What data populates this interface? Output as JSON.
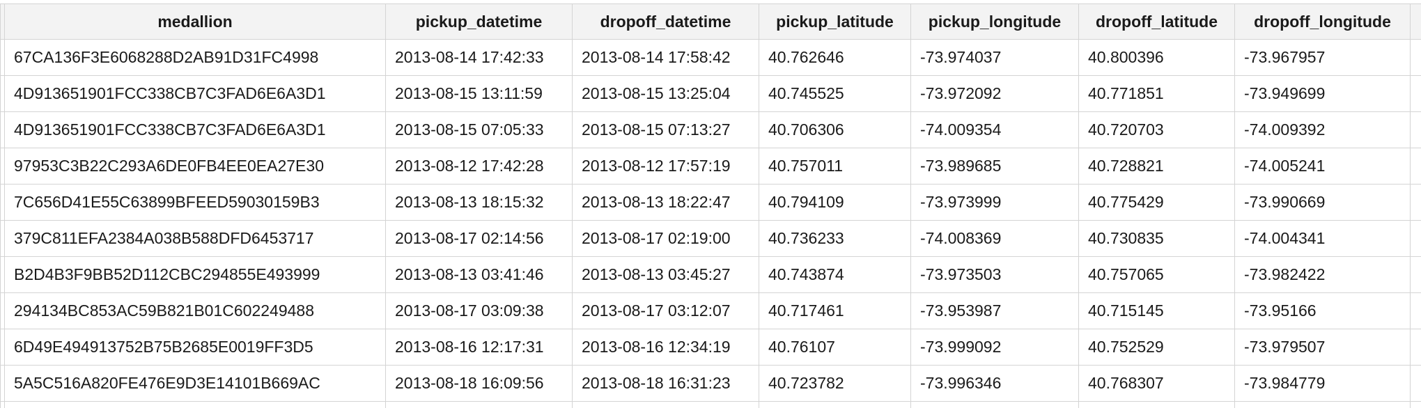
{
  "table": {
    "columns": [
      "medallion",
      "pickup_datetime",
      "dropoff_datetime",
      "pickup_latitude",
      "pickup_longitude",
      "dropoff_latitude",
      "dropoff_longitude"
    ],
    "rows": [
      [
        "67CA136F3E6068288D2AB91D31FC4998",
        "2013-08-14 17:42:33",
        "2013-08-14 17:58:42",
        "40.762646",
        "-73.974037",
        "40.800396",
        "-73.967957"
      ],
      [
        "4D913651901FCC338CB7C3FAD6E6A3D1",
        "2013-08-15 13:11:59",
        "2013-08-15 13:25:04",
        "40.745525",
        "-73.972092",
        "40.771851",
        "-73.949699"
      ],
      [
        "4D913651901FCC338CB7C3FAD6E6A3D1",
        "2013-08-15 07:05:33",
        "2013-08-15 07:13:27",
        "40.706306",
        "-74.009354",
        "40.720703",
        "-74.009392"
      ],
      [
        "97953C3B22C293A6DE0FB4EE0EA27E30",
        "2013-08-12 17:42:28",
        "2013-08-12 17:57:19",
        "40.757011",
        "-73.989685",
        "40.728821",
        "-74.005241"
      ],
      [
        "7C656D41E55C63899BFEED59030159B3",
        "2013-08-13 18:15:32",
        "2013-08-13 18:22:47",
        "40.794109",
        "-73.973999",
        "40.775429",
        "-73.990669"
      ],
      [
        "379C811EFA2384A038B588DFD6453717",
        "2013-08-17 02:14:56",
        "2013-08-17 02:19:00",
        "40.736233",
        "-74.008369",
        "40.730835",
        "-74.004341"
      ],
      [
        "B2D4B3F9BB52D112CBC294855E493999",
        "2013-08-13 03:41:46",
        "2013-08-13 03:45:27",
        "40.743874",
        "-73.973503",
        "40.757065",
        "-73.982422"
      ],
      [
        "294134BC853AC59B821B01C602249488",
        "2013-08-17 03:09:38",
        "2013-08-17 03:12:07",
        "40.717461",
        "-73.953987",
        "40.715145",
        "-73.95166"
      ],
      [
        "6D49E494913752B75B2685E0019FF3D5",
        "2013-08-16 12:17:31",
        "2013-08-16 12:34:19",
        "40.76107",
        "-73.999092",
        "40.752529",
        "-73.979507"
      ],
      [
        "5A5C516A820FE476E9D3E14101B669AC",
        "2013-08-18 16:09:56",
        "2013-08-18 16:31:23",
        "40.723782",
        "-73.996346",
        "40.768307",
        "-73.984779"
      ]
    ]
  }
}
